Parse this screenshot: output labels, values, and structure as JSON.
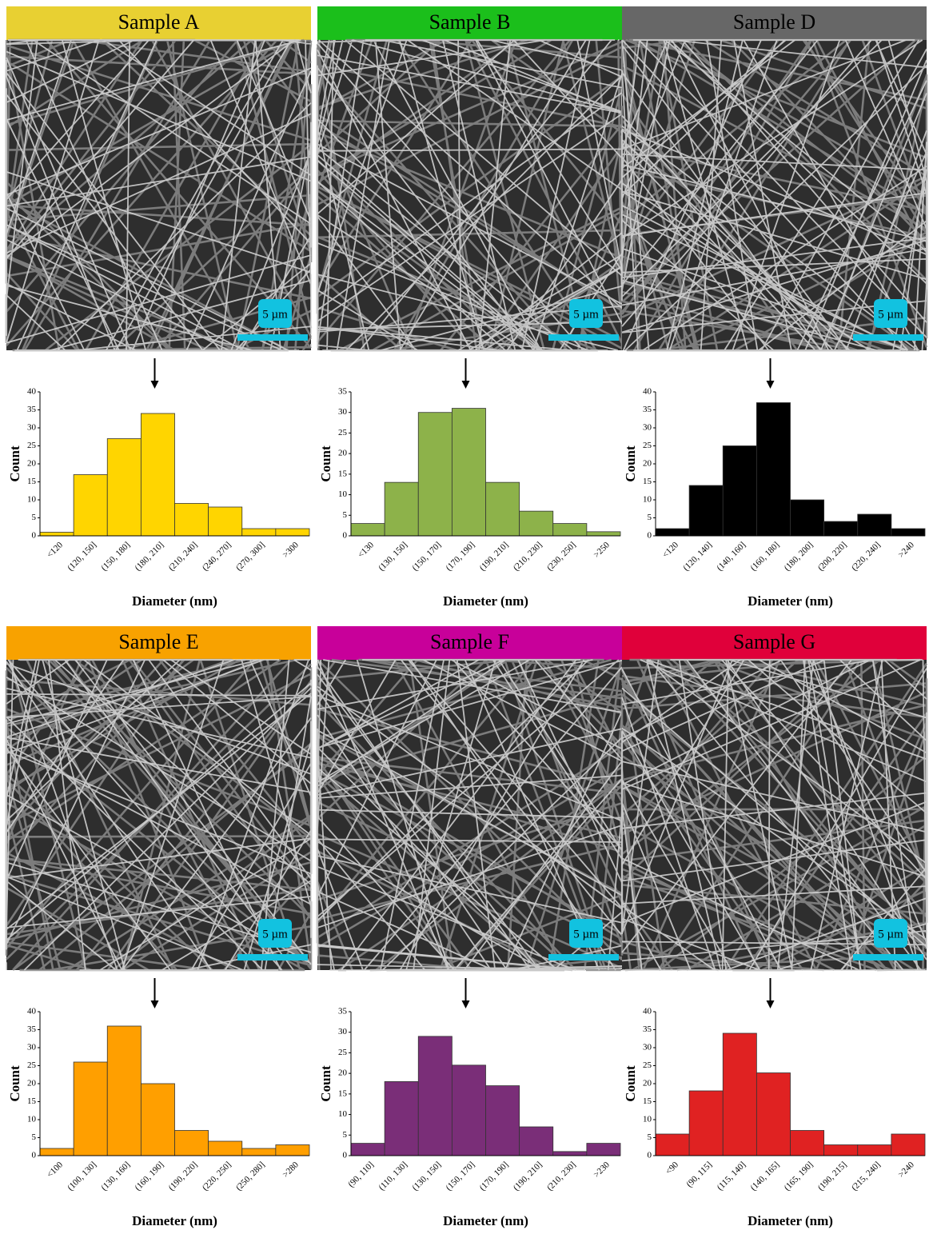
{
  "chart_data": [
    {
      "type": "bar",
      "title": "Sample A",
      "title_color": "#e8d032",
      "scale_bar": "5 µm",
      "xlabel": "Diameter (nm)",
      "ylabel": "Count",
      "categories": [
        "<120",
        "(120, 150]",
        "(150, 180]",
        "(180, 210]",
        "(210, 240]",
        "(240, 270]",
        "(270, 300]",
        ">300"
      ],
      "values": [
        1,
        17,
        27,
        34,
        9,
        8,
        2,
        2
      ],
      "color": "#ffd500",
      "ylim": [
        0,
        40
      ],
      "yticks": [
        0,
        5,
        10,
        15,
        20,
        25,
        30,
        35,
        40
      ]
    },
    {
      "type": "bar",
      "title": "Sample B",
      "title_color": "#1bbf1b",
      "scale_bar": "5 µm",
      "xlabel": "Diameter (nm)",
      "ylabel": "Count",
      "categories": [
        "<130",
        "(130, 150]",
        "(150, 170]",
        "(170, 190]",
        "(190, 210]",
        "(210, 230]",
        "(230, 250]",
        ">250"
      ],
      "values": [
        3,
        13,
        30,
        31,
        13,
        6,
        3,
        1
      ],
      "color": "#8db24a",
      "ylim": [
        0,
        35
      ],
      "yticks": [
        0,
        5,
        10,
        15,
        20,
        25,
        30,
        35
      ]
    },
    {
      "type": "bar",
      "title": "Sample D",
      "title_color": "#676767",
      "scale_bar": "5 µm",
      "xlabel": "Diameter (nm)",
      "ylabel": "Count",
      "categories": [
        "<120",
        "(120, 140]",
        "(140, 160]",
        "(160, 180]",
        "(180, 200]",
        "(200, 220]",
        "(220, 240]",
        ">240"
      ],
      "values": [
        2,
        14,
        25,
        37,
        10,
        4,
        6,
        2
      ],
      "color": "#000000",
      "ylim": [
        0,
        40
      ],
      "yticks": [
        0,
        5,
        10,
        15,
        20,
        25,
        30,
        35,
        40
      ]
    },
    {
      "type": "bar",
      "title": "Sample E",
      "title_color": "#f8a200",
      "scale_bar": "5 µm",
      "xlabel": "Diameter (nm)",
      "ylabel": "Count",
      "categories": [
        "<100",
        "(100, 130]",
        "(130, 160]",
        "(160, 190]",
        "(190, 220]",
        "(220, 250]",
        "(250, 280]",
        ">280"
      ],
      "values": [
        2,
        26,
        36,
        20,
        7,
        4,
        2,
        3
      ],
      "color": "#ff9f00",
      "ylim": [
        0,
        40
      ],
      "yticks": [
        0,
        5,
        10,
        15,
        20,
        25,
        30,
        35,
        40
      ]
    },
    {
      "type": "bar",
      "title": "Sample F",
      "title_color": "#c8009a",
      "scale_bar": "5 µm",
      "xlabel": "Diameter (nm)",
      "ylabel": "Count",
      "categories": [
        "(90, 110]",
        "(110, 130]",
        "(130, 150]",
        "(150, 170]",
        "(170, 190]",
        "(190, 210]",
        "(210, 230]",
        ">230"
      ],
      "values": [
        3,
        18,
        29,
        22,
        17,
        7,
        1,
        3
      ],
      "color": "#7a2e78",
      "ylim": [
        0,
        35
      ],
      "yticks": [
        0,
        5,
        10,
        15,
        20,
        25,
        30,
        35
      ]
    },
    {
      "type": "bar",
      "title": "Sample G",
      "title_color": "#e0003a",
      "scale_bar": "5 µm",
      "xlabel": "Diameter (nm)",
      "ylabel": "Count",
      "categories": [
        "<90",
        "(90, 115]",
        "(115, 140]",
        "(140, 165]",
        "(165, 190]",
        "(190, 215]",
        "(215, 240]",
        ">240"
      ],
      "values": [
        6,
        18,
        34,
        23,
        7,
        3,
        3,
        6
      ],
      "color": "#e02222",
      "ylim": [
        0,
        40
      ],
      "yticks": [
        0,
        5,
        10,
        15,
        20,
        25,
        30,
        35,
        40
      ]
    }
  ]
}
